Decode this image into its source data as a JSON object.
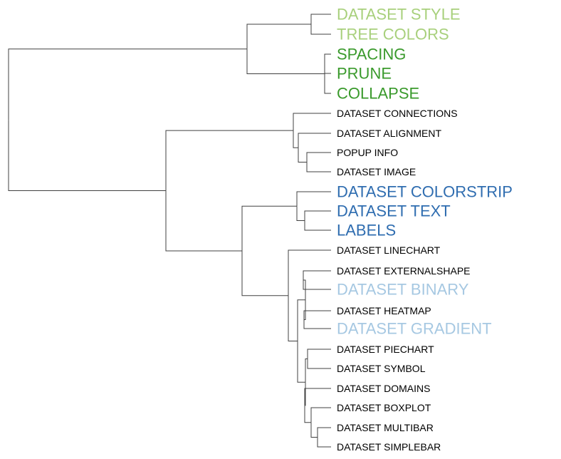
{
  "tree": {
    "children": [
      {
        "children": [
          {
            "children": [
              {
                "name": "DATASET STYLE"
              },
              {
                "name": "TREE COLORS"
              }
            ]
          },
          {
            "children": [
              {
                "name": "SPACING"
              },
              {
                "name": "PRUNE"
              },
              {
                "name": "COLLAPSE"
              }
            ]
          }
        ]
      },
      {
        "children": [
          {
            "children": [
              {
                "name": "DATASET CONNECTIONS"
              },
              {
                "children": [
                  {
                    "name": "DATASET ALIGNMENT"
                  },
                  {
                    "children": [
                      {
                        "name": "POPUP INFO"
                      },
                      {
                        "name": "DATASET IMAGE"
                      }
                    ]
                  }
                ]
              }
            ]
          },
          {
            "children": [
              {
                "children": [
                  {
                    "name": "DATASET COLORSTRIP"
                  },
                  {
                    "children": [
                      {
                        "name": "DATASET TEXT"
                      },
                      {
                        "name": "LABELS"
                      }
                    ]
                  }
                ]
              },
              {
                "children": [
                  {
                    "name": "DATASET LINECHART"
                  },
                  {
                    "children": [
                      {
                        "children": [
                          {
                            "children": [
                              {
                                "name": "DATASET EXTERNALSHAPE"
                              },
                              {
                                "name": "DATASET BINARY"
                              }
                            ]
                          },
                          {
                            "children": [
                              {
                                "name": "DATASET HEATMAP"
                              },
                              {
                                "name": "DATASET GRADIENT"
                              }
                            ]
                          }
                        ]
                      },
                      {
                        "children": [
                          {
                            "children": [
                              {
                                "name": "DATASET PIECHART"
                              },
                              {
                                "name": "DATASET SYMBOL"
                              }
                            ]
                          },
                          {
                            "children": [
                              {
                                "name": "DATASET DOMAINS"
                              },
                              {
                                "children": [
                                  {
                                    "name": "DATASET BOXPLOT"
                                  },
                                  {
                                    "children": [
                                      {
                                        "name": "DATASET MULTIBAR"
                                      },
                                      {
                                        "name": "DATASET SIMPLEBAR"
                                      }
                                    ]
                                  }
                                ]
                              }
                            ]
                          }
                        ]
                      }
                    ]
                  }
                ]
              }
            ]
          }
        ]
      }
    ]
  },
  "label_colors": {
    "DATASET STYLE": "#a8d07c",
    "TREE COLORS": "#a8d07c",
    "SPACING": "#3a9a2c",
    "PRUNE": "#3a9a2c",
    "COLLAPSE": "#3a9a2c",
    "DATASET COLORSTRIP": "#2f6db0",
    "DATASET TEXT": "#2f6db0",
    "LABELS": "#2f6db0",
    "DATASET BINARY": "#a6c8e2",
    "DATASET GRADIENT": "#a6c8e2"
  },
  "default_label_color": "#000000",
  "branch_color": "#404040"
}
